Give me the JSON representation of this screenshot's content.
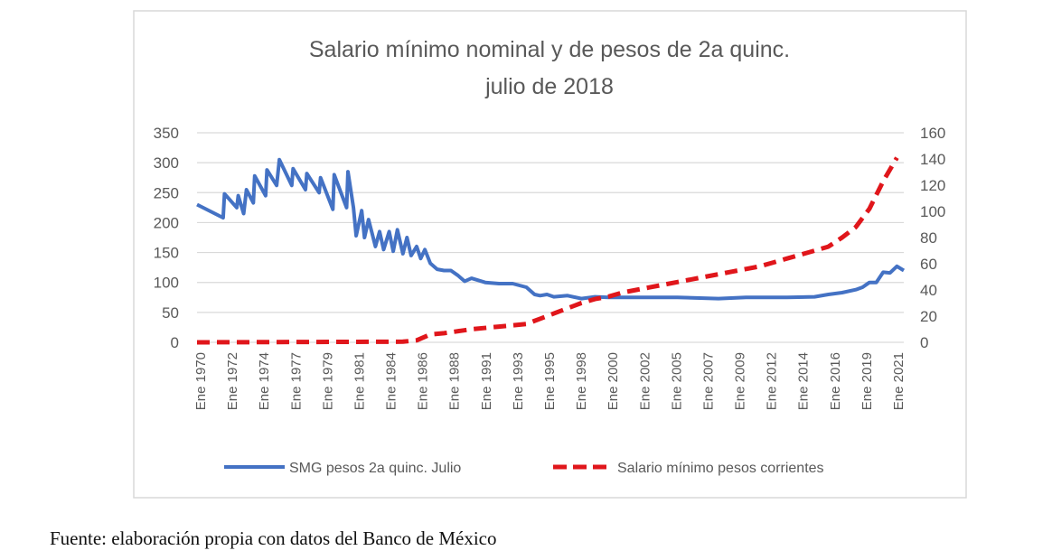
{
  "chart_data": {
    "type": "line",
    "title": [
      "Salario mínimo nominal y de pesos de 2a quinc.",
      "julio de 2018"
    ],
    "xlabel": "",
    "ylabel": "",
    "y_left": {
      "lim": [
        0,
        350
      ],
      "ticks": [
        0,
        50,
        100,
        150,
        200,
        250,
        300,
        350
      ]
    },
    "y_right": {
      "lim": [
        0,
        160
      ],
      "ticks": [
        0,
        20,
        40,
        60,
        80,
        100,
        120,
        140,
        160
      ]
    },
    "x_ticks": [
      "Ene 1970",
      "Ene 1972",
      "Ene 1974",
      "Ene 1977",
      "Ene 1979",
      "Ene 1981",
      "Ene 1984",
      "Ene 1986",
      "Ene 1988",
      "Ene 1991",
      "Ene 1993",
      "Ene 1995",
      "Ene 1998",
      "Ene 2000",
      "Ene 2002",
      "Ene 2005",
      "Ene 2007",
      "Ene 2009",
      "Ene 2012",
      "Ene 2014",
      "Ene 2016",
      "Ene 2019",
      "Ene 2021"
    ],
    "x_range": [
      1970,
      2021.5
    ],
    "grid": true,
    "legend_position": "bottom",
    "series": [
      {
        "name": "SMG pesos 2a quinc. Julio",
        "axis": "left",
        "color": "#4472c4",
        "style": "solid",
        "points": [
          [
            1970,
            230
          ],
          [
            1971.9,
            208
          ],
          [
            1972,
            248
          ],
          [
            1972.9,
            225
          ],
          [
            1973,
            245
          ],
          [
            1973.4,
            215
          ],
          [
            1973.6,
            255
          ],
          [
            1974.1,
            233
          ],
          [
            1974.2,
            278
          ],
          [
            1975,
            245
          ],
          [
            1975.1,
            288
          ],
          [
            1975.8,
            262
          ],
          [
            1976,
            305
          ],
          [
            1976.9,
            262
          ],
          [
            1977,
            290
          ],
          [
            1977.9,
            255
          ],
          [
            1978,
            282
          ],
          [
            1978.9,
            250
          ],
          [
            1979,
            275
          ],
          [
            1979.9,
            222
          ],
          [
            1980,
            280
          ],
          [
            1980.9,
            225
          ],
          [
            1981,
            285
          ],
          [
            1981.4,
            225
          ],
          [
            1981.6,
            178
          ],
          [
            1982,
            220
          ],
          [
            1982.2,
            175
          ],
          [
            1982.5,
            205
          ],
          [
            1983,
            160
          ],
          [
            1983.3,
            185
          ],
          [
            1983.6,
            155
          ],
          [
            1984,
            185
          ],
          [
            1984.3,
            152
          ],
          [
            1984.6,
            188
          ],
          [
            1985,
            148
          ],
          [
            1985.3,
            175
          ],
          [
            1985.6,
            145
          ],
          [
            1986,
            160
          ],
          [
            1986.3,
            140
          ],
          [
            1986.6,
            155
          ],
          [
            1987,
            132
          ],
          [
            1987.5,
            122
          ],
          [
            1988,
            120
          ],
          [
            1988.5,
            120
          ],
          [
            1989,
            112
          ],
          [
            1989.5,
            102
          ],
          [
            1990,
            107
          ],
          [
            1991,
            100
          ],
          [
            1992,
            98
          ],
          [
            1993,
            98
          ],
          [
            1994,
            92
          ],
          [
            1994.6,
            80
          ],
          [
            1995,
            78
          ],
          [
            1995.5,
            80
          ],
          [
            1996,
            76
          ],
          [
            1997,
            78
          ],
          [
            1998,
            73
          ],
          [
            1999,
            76
          ],
          [
            2000,
            75
          ],
          [
            2002,
            75
          ],
          [
            2005,
            75
          ],
          [
            2008,
            73
          ],
          [
            2010,
            75
          ],
          [
            2013,
            75
          ],
          [
            2015,
            76
          ],
          [
            2016,
            80
          ],
          [
            2017,
            83
          ],
          [
            2018,
            88
          ],
          [
            2018.5,
            92
          ],
          [
            2019,
            100
          ],
          [
            2019.5,
            100
          ],
          [
            2020,
            117
          ],
          [
            2020.5,
            116
          ],
          [
            2021,
            127
          ],
          [
            2021.5,
            120
          ]
        ]
      },
      {
        "name": "Salario mínimo pesos corrientes",
        "axis": "right",
        "color": "#e0161b",
        "style": "dashed",
        "points": [
          [
            1970,
            0
          ],
          [
            1985,
            0.5
          ],
          [
            1986,
            1.5
          ],
          [
            1987,
            6
          ],
          [
            1988,
            7
          ],
          [
            1990,
            10
          ],
          [
            1992,
            12
          ],
          [
            1994,
            14
          ],
          [
            1995,
            18
          ],
          [
            1996,
            22
          ],
          [
            1997,
            26
          ],
          [
            1998,
            30
          ],
          [
            1999,
            33
          ],
          [
            2000,
            35
          ],
          [
            2001,
            38
          ],
          [
            2002,
            40
          ],
          [
            2003,
            42
          ],
          [
            2004,
            44
          ],
          [
            2005,
            46
          ],
          [
            2006,
            48
          ],
          [
            2007,
            50
          ],
          [
            2008,
            52
          ],
          [
            2009,
            54
          ],
          [
            2010,
            56
          ],
          [
            2011,
            58
          ],
          [
            2012,
            61
          ],
          [
            2013,
            64
          ],
          [
            2014,
            67
          ],
          [
            2015,
            70
          ],
          [
            2016,
            73
          ],
          [
            2017,
            80
          ],
          [
            2018,
            88
          ],
          [
            2019,
            102
          ],
          [
            2020,
            123
          ],
          [
            2021,
            141
          ]
        ]
      }
    ]
  },
  "caption": "Fuente: elaboración propia con datos del Banco de México"
}
